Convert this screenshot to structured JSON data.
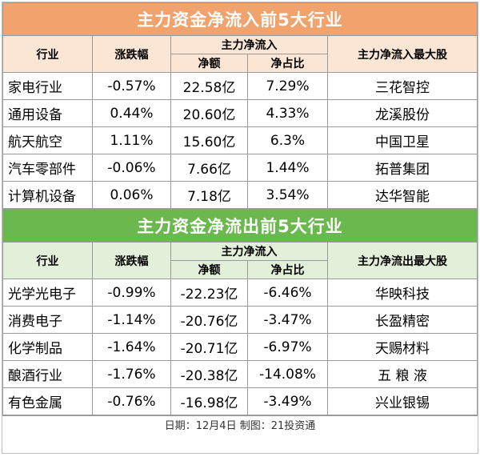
{
  "inflow": {
    "title": "主力资金净流入前5大行业",
    "headers": {
      "industry": "行业",
      "change": "涨跌幅",
      "group": "主力净流入",
      "amount": "净额",
      "ratio": "净占比",
      "top_stock": "主力净流入最大股"
    },
    "rows": [
      {
        "industry": "家电行业",
        "change": "-0.57%",
        "amount": "22.58亿",
        "ratio": "7.29%",
        "stock": "三花智控"
      },
      {
        "industry": "通用设备",
        "change": "0.44%",
        "amount": "20.60亿",
        "ratio": "4.33%",
        "stock": "龙溪股份"
      },
      {
        "industry": "航天航空",
        "change": "1.11%",
        "amount": "15.60亿",
        "ratio": "6.3%",
        "stock": "中国卫星"
      },
      {
        "industry": "汽车零部件",
        "change": "-0.06%",
        "amount": "7.66亿",
        "ratio": "1.44%",
        "stock": "拓普集团"
      },
      {
        "industry": "计算机设备",
        "change": "0.06%",
        "amount": "7.18亿",
        "ratio": "3.54%",
        "stock": "达华智能"
      }
    ]
  },
  "outflow": {
    "title": "主力资金净流出前5大行业",
    "headers": {
      "industry": "行业",
      "change": "涨跌幅",
      "group": "主力净流入",
      "amount": "净额",
      "ratio": "净占比",
      "top_stock": "主力净流出最大股"
    },
    "rows": [
      {
        "industry": "光学光电子",
        "change": "-0.99%",
        "amount": "-22.23亿",
        "ratio": "-6.46%",
        "stock": "华映科技"
      },
      {
        "industry": "消费电子",
        "change": "-1.14%",
        "amount": "-20.76亿",
        "ratio": "-3.47%",
        "stock": "长盈精密"
      },
      {
        "industry": "化学制品",
        "change": "-1.64%",
        "amount": "-20.71亿",
        "ratio": "-6.97%",
        "stock": "天赐材料"
      },
      {
        "industry": "酿酒行业",
        "change": "-1.76%",
        "amount": "-20.38亿",
        "ratio": "-14.08%",
        "stock": "五 粮 液"
      },
      {
        "industry": "有色金属",
        "change": "-0.76%",
        "amount": "-16.98亿",
        "ratio": "-3.49%",
        "stock": "兴业银锡"
      }
    ]
  },
  "footer": "日期：12月4日 制图：21投资通",
  "colors": {
    "inflow_title_bg": "#f0a36c",
    "inflow_header_bg": "#fbe6d6",
    "outflow_title_bg": "#6bb84f",
    "outflow_header_bg": "#e2efd9"
  }
}
